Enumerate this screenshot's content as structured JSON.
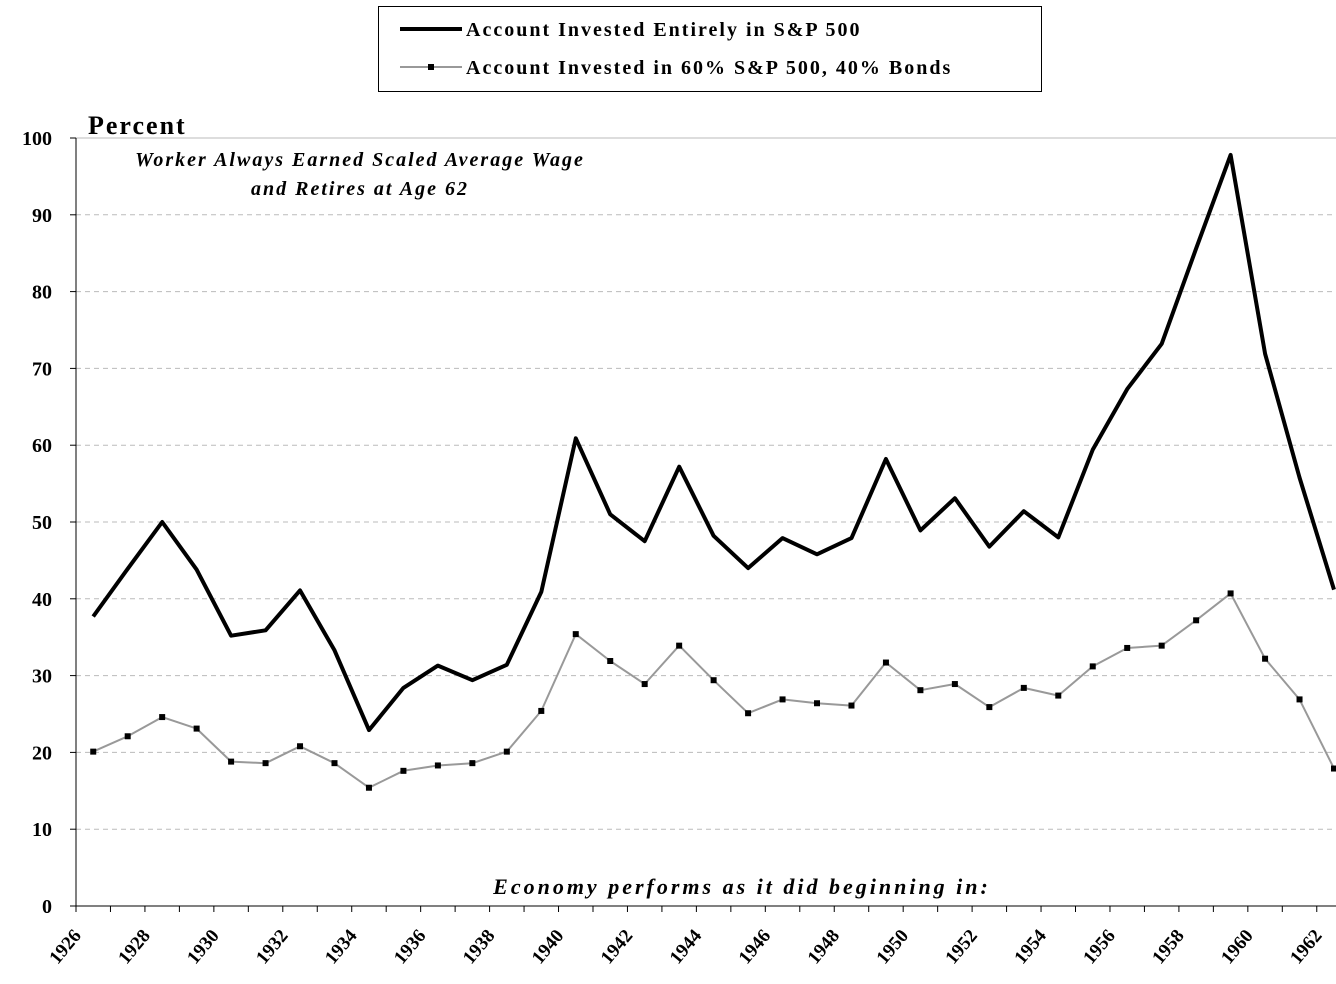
{
  "chart_data": {
    "type": "line",
    "ylabel": "Percent",
    "annotation": [
      "Worker Always Earned Scaled Average Wage",
      "and Retires at Age 62"
    ],
    "xlabel": "Economy performs as it did beginning in:",
    "categories": [
      "1926",
      null,
      "1928",
      null,
      "1930",
      null,
      "1932",
      null,
      "1934",
      null,
      "1936",
      null,
      "1938",
      null,
      "1940",
      null,
      "1942",
      null,
      "1944",
      null,
      "1946",
      null,
      "1948",
      null,
      "1950",
      null,
      "1952",
      null,
      "1954",
      null,
      "1956",
      null,
      "1958",
      null,
      "1960",
      null,
      "1962"
    ],
    "series": [
      {
        "name": "Account Invested Entirely in S&P 500",
        "color": "#000000",
        "marker": false,
        "values": [
          37.7,
          43.9,
          50,
          43.8,
          35.2,
          35.9,
          41.1,
          33.3,
          22.9,
          28.4,
          31.3,
          29.4,
          31.4,
          40.9,
          60.9,
          51,
          47.5,
          57.2,
          48.2,
          44,
          47.9,
          45.8,
          47.9,
          58.2,
          48.9,
          53.1,
          46.8,
          51.4,
          48,
          59.4,
          67.3,
          73.2,
          85.6,
          97.8,
          71.9,
          55.8,
          41.2
        ]
      },
      {
        "name": "Account Invested in 60% S&P 500, 40% Bonds",
        "color": "#999999",
        "marker": true,
        "values": [
          20.1,
          22.1,
          24.6,
          23.1,
          18.8,
          18.6,
          20.8,
          18.6,
          15.4,
          17.6,
          18.3,
          18.6,
          20.1,
          25.4,
          35.4,
          31.9,
          28.9,
          33.9,
          29.4,
          25.1,
          26.9,
          26.4,
          26.1,
          31.7,
          28.1,
          28.9,
          25.9,
          28.4,
          27.4,
          31.2,
          33.6,
          33.9,
          37.2,
          40.7,
          32.2,
          26.9,
          17.9
        ]
      }
    ],
    "ylim": [
      0,
      100
    ],
    "yticks": [
      0,
      10,
      20,
      30,
      40,
      50,
      60,
      70,
      80,
      90,
      100
    ],
    "grid": true
  }
}
